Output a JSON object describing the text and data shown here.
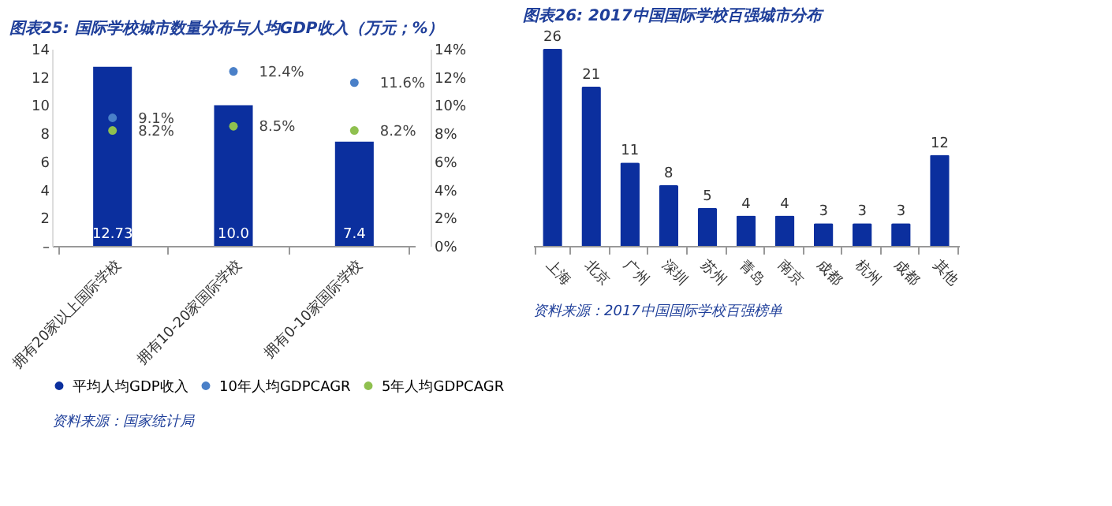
{
  "chart_data": [
    {
      "type": "bar",
      "title": "图表25: 国际学校城市数量分布与人均GDP收入（万元；%）",
      "categories": [
        "拥有20家以上国际学校",
        "拥有10-20家国际学校",
        "拥有0-10家国际学校"
      ],
      "series": [
        {
          "name": "平均人均GDP收入",
          "type": "bar",
          "color": "#0b2f9e",
          "values": [
            12.73,
            10.0,
            7.4
          ],
          "value_labels": [
            "12.73",
            "10.0",
            "7.4"
          ]
        },
        {
          "name": "10年人均GDPCAGR",
          "type": "scatter",
          "axis": "y2",
          "color": "#4a80c8",
          "values": [
            9.1,
            12.4,
            11.6
          ],
          "value_labels": [
            "9.1%",
            "12.4%",
            "11.6%"
          ]
        },
        {
          "name": "5年人均GDPCAGR",
          "type": "scatter",
          "axis": "y2",
          "color": "#8fc04f",
          "values": [
            8.2,
            8.5,
            8.2
          ],
          "value_labels": [
            "8.2%",
            "8.5%",
            "8.2%"
          ]
        }
      ],
      "ylim": [
        0,
        14
      ],
      "yticks": [
        {
          "value": 0,
          "label": "–"
        },
        2,
        4,
        6,
        8,
        10,
        12,
        14
      ],
      "y2lim": [
        0,
        14
      ],
      "y2ticks": [
        {
          "value": 0,
          "label": "0%"
        },
        {
          "value": 2,
          "label": "2%"
        },
        {
          "value": 4,
          "label": "4%"
        },
        {
          "value": 6,
          "label": "6%"
        },
        {
          "value": 8,
          "label": "8%"
        },
        {
          "value": 10,
          "label": "10%"
        },
        {
          "value": 12,
          "label": "12%"
        },
        {
          "value": 14,
          "label": "14%"
        }
      ],
      "marker": "circle",
      "legend": "bottom",
      "grid": false,
      "annotations": [
        "资料来源：国家统计局"
      ]
    },
    {
      "type": "bar",
      "title": "图表26: 2017中国国际学校百强城市分布",
      "categories": [
        "上海",
        "北京",
        "广州",
        "深圳",
        "苏州",
        "青岛",
        "南京",
        "成都",
        "杭州",
        "成都",
        "其他"
      ],
      "values": [
        26,
        21,
        11,
        8,
        5,
        4,
        4,
        3,
        3,
        3,
        12
      ],
      "color": "#0b2f9e",
      "data_labels": true,
      "tick_labels": "x",
      "grid": false,
      "annotations": [
        "资料来源：2017中国国际学校百强榜单"
      ]
    }
  ]
}
